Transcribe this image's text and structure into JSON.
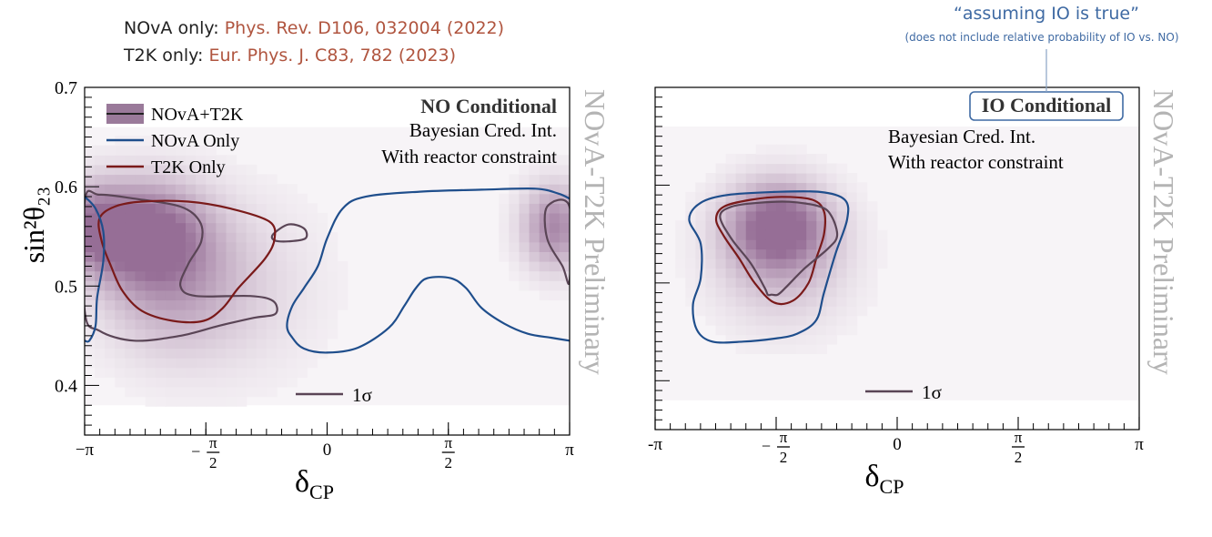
{
  "references": [
    {
      "label": "NOvA only: ",
      "citation": "Phys. Rev. D106, 032004 (2022)"
    },
    {
      "label": "T2K only: ",
      "citation": "Eur. Phys. J. C83, 782 (2023)"
    }
  ],
  "note": {
    "main": "“assuming IO is true”",
    "sub": "(does not include relative probability of IO vs. NO)"
  },
  "colors": {
    "combined": "#9a7a9a",
    "combined_line": "#5a4556",
    "nova": "#1f4e8c",
    "t2k": "#7a1a1a",
    "note": "#3f6aa3",
    "watermark": "#b4b4b4"
  },
  "chart_data": [
    {
      "type": "heatmap",
      "title": "NO Conditional",
      "subtitle_lines": [
        "Bayesian Cred. Int.",
        "With reactor constraint"
      ],
      "xlabel": "δ",
      "xlabel_sub": "CP",
      "ylabel": "sin²θ₂₃",
      "xlim": [
        -3.1416,
        3.1416
      ],
      "ylim": [
        0.35,
        0.7
      ],
      "x_ticks": [
        {
          "value": -3.1416,
          "label": "−π"
        },
        {
          "value": -1.5708,
          "label": "−π/2"
        },
        {
          "value": 0,
          "label": "0"
        },
        {
          "value": 1.5708,
          "label": "π/2"
        },
        {
          "value": 3.1416,
          "label": "π"
        }
      ],
      "y_ticks": [
        {
          "value": 0.4,
          "label": "0.4"
        },
        {
          "value": 0.5,
          "label": "0.5"
        },
        {
          "value": 0.6,
          "label": "0.6"
        },
        {
          "value": 0.7,
          "label": "0.7"
        }
      ],
      "legend": [
        {
          "name": "NOvA+T2K",
          "key": "combined"
        },
        {
          "name": "NOvA Only",
          "key": "nova"
        },
        {
          "name": "T2K Only",
          "key": "t2k"
        }
      ],
      "level_label": "1σ",
      "watermark": "NOvA-T2K Preliminary",
      "density_blobs": [
        {
          "x": -2.4,
          "y": 0.555,
          "sx": 0.55,
          "sy": 0.035,
          "w": 1.0
        },
        {
          "x": -2.1,
          "y": 0.505,
          "sx": 0.6,
          "sy": 0.05,
          "w": 0.45
        },
        {
          "x": -1.3,
          "y": 0.5,
          "sx": 0.8,
          "sy": 0.06,
          "w": 0.25
        },
        {
          "x": 2.95,
          "y": 0.56,
          "sx": 0.3,
          "sy": 0.03,
          "w": 0.8
        },
        {
          "x": -3.05,
          "y": 0.56,
          "sx": 0.3,
          "sy": 0.03,
          "w": 0.6
        }
      ],
      "contours": [
        {
          "key": "combined",
          "closed": true,
          "points": [
            [
              -3.14,
              0.585
            ],
            [
              -2.95,
              0.592
            ],
            [
              -2.5,
              0.588
            ],
            [
              -1.9,
              0.58
            ],
            [
              -1.65,
              0.565
            ],
            [
              -1.63,
              0.545
            ],
            [
              -1.8,
              0.522
            ],
            [
              -1.9,
              0.5
            ],
            [
              -1.7,
              0.49
            ],
            [
              -1.0,
              0.49
            ],
            [
              -0.7,
              0.485
            ],
            [
              -0.67,
              0.472
            ],
            [
              -0.95,
              0.468
            ],
            [
              -1.4,
              0.46
            ],
            [
              -1.9,
              0.45
            ],
            [
              -2.5,
              0.445
            ],
            [
              -2.95,
              0.455
            ],
            [
              -3.14,
              0.475
            ]
          ]
        },
        {
          "key": "combined",
          "closed": true,
          "points": [
            [
              -0.7,
              0.552
            ],
            [
              -0.5,
              0.562
            ],
            [
              -0.3,
              0.558
            ],
            [
              -0.28,
              0.548
            ],
            [
              -0.5,
              0.545
            ],
            [
              -0.68,
              0.546
            ]
          ]
        },
        {
          "key": "combined",
          "closed": true,
          "points": [
            [
              2.85,
              0.58
            ],
            [
              3.14,
              0.58
            ],
            [
              3.14,
              0.505
            ],
            [
              3.05,
              0.52
            ],
            [
              2.85,
              0.548
            ]
          ]
        },
        {
          "key": "t2k",
          "closed": true,
          "points": [
            [
              -2.95,
              0.568
            ],
            [
              -2.75,
              0.58
            ],
            [
              -2.4,
              0.585
            ],
            [
              -1.8,
              0.585
            ],
            [
              -1.25,
              0.578
            ],
            [
              -0.75,
              0.565
            ],
            [
              -0.68,
              0.548
            ],
            [
              -0.8,
              0.528
            ],
            [
              -1.15,
              0.498
            ],
            [
              -1.35,
              0.478
            ],
            [
              -1.6,
              0.465
            ],
            [
              -2.0,
              0.465
            ],
            [
              -2.4,
              0.475
            ],
            [
              -2.65,
              0.495
            ],
            [
              -2.8,
              0.52
            ],
            [
              -2.92,
              0.545
            ]
          ]
        },
        {
          "key": "nova",
          "closed": false,
          "points": [
            [
              -3.14,
              0.59
            ],
            [
              -3.0,
              0.578
            ],
            [
              -2.9,
              0.555
            ],
            [
              -2.9,
              0.525
            ],
            [
              -2.98,
              0.488
            ],
            [
              -3.0,
              0.46
            ],
            [
              -3.08,
              0.445
            ],
            [
              -3.14,
              0.445
            ]
          ]
        },
        {
          "key": "nova",
          "closed": false,
          "points": [
            [
              3.14,
              0.445
            ],
            [
              2.9,
              0.448
            ],
            [
              2.6,
              0.452
            ],
            [
              2.3,
              0.462
            ],
            [
              2.0,
              0.478
            ],
            [
              1.8,
              0.498
            ],
            [
              1.6,
              0.508
            ],
            [
              1.3,
              0.508
            ],
            [
              1.15,
              0.498
            ],
            [
              1.0,
              0.48
            ],
            [
              0.8,
              0.458
            ],
            [
              0.4,
              0.438
            ],
            [
              0.0,
              0.433
            ],
            [
              -0.3,
              0.437
            ],
            [
              -0.45,
              0.448
            ],
            [
              -0.52,
              0.46
            ],
            [
              -0.45,
              0.48
            ],
            [
              -0.3,
              0.498
            ],
            [
              -0.12,
              0.52
            ],
            [
              0.0,
              0.548
            ],
            [
              0.2,
              0.578
            ],
            [
              0.5,
              0.59
            ],
            [
              1.2,
              0.595
            ],
            [
              2.0,
              0.597
            ],
            [
              2.7,
              0.598
            ],
            [
              3.0,
              0.593
            ],
            [
              3.14,
              0.588
            ]
          ]
        }
      ]
    },
    {
      "type": "heatmap",
      "title": "IO Conditional",
      "subtitle_lines": [
        "Bayesian Cred. Int.",
        "With reactor constraint"
      ],
      "xlabel": "δ",
      "xlabel_sub": "CP",
      "ylabel": "",
      "xlim": [
        -3.1416,
        3.1416
      ],
      "ylim": [
        0.35,
        0.7
      ],
      "x_ticks": [
        {
          "value": -3.1416,
          "label": "-π"
        },
        {
          "value": -1.5708,
          "label": "−π/2"
        },
        {
          "value": 0,
          "label": "0"
        },
        {
          "value": 1.5708,
          "label": "π/2"
        },
        {
          "value": 3.1416,
          "label": "π"
        }
      ],
      "y_ticks": [
        {
          "value": 0.4,
          "label": ""
        },
        {
          "value": 0.5,
          "label": ""
        },
        {
          "value": 0.6,
          "label": ""
        },
        {
          "value": 0.7,
          "label": ""
        }
      ],
      "level_label": "1σ",
      "watermark": "NOvA-T2K Preliminary",
      "density_blobs": [
        {
          "x": -1.55,
          "y": 0.56,
          "sx": 0.45,
          "sy": 0.03,
          "w": 1.0
        },
        {
          "x": -1.5,
          "y": 0.52,
          "sx": 0.6,
          "sy": 0.045,
          "w": 0.4
        }
      ],
      "contours": [
        {
          "key": "nova",
          "closed": true,
          "points": [
            [
              -2.7,
              0.565
            ],
            [
              -2.55,
              0.582
            ],
            [
              -2.2,
              0.59
            ],
            [
              -1.6,
              0.593
            ],
            [
              -1.0,
              0.593
            ],
            [
              -0.68,
              0.585
            ],
            [
              -0.65,
              0.565
            ],
            [
              -0.8,
              0.53
            ],
            [
              -0.95,
              0.49
            ],
            [
              -1.05,
              0.462
            ],
            [
              -1.3,
              0.448
            ],
            [
              -1.6,
              0.443
            ],
            [
              -2.0,
              0.44
            ],
            [
              -2.4,
              0.44
            ],
            [
              -2.6,
              0.452
            ],
            [
              -2.65,
              0.478
            ],
            [
              -2.55,
              0.505
            ],
            [
              -2.55,
              0.54
            ]
          ]
        },
        {
          "key": "t2k",
          "closed": true,
          "points": [
            [
              -2.35,
              0.565
            ],
            [
              -2.25,
              0.578
            ],
            [
              -1.9,
              0.585
            ],
            [
              -1.5,
              0.588
            ],
            [
              -1.1,
              0.585
            ],
            [
              -0.95,
              0.573
            ],
            [
              -0.95,
              0.55
            ],
            [
              -1.05,
              0.525
            ],
            [
              -1.15,
              0.5
            ],
            [
              -1.35,
              0.482
            ],
            [
              -1.6,
              0.48
            ],
            [
              -1.85,
              0.5
            ],
            [
              -2.05,
              0.525
            ],
            [
              -2.25,
              0.548
            ]
          ]
        },
        {
          "key": "combined",
          "closed": true,
          "points": [
            [
              -2.3,
              0.568
            ],
            [
              -2.15,
              0.578
            ],
            [
              -1.8,
              0.582
            ],
            [
              -1.4,
              0.583
            ],
            [
              -1.0,
              0.578
            ],
            [
              -0.85,
              0.568
            ],
            [
              -0.78,
              0.548
            ],
            [
              -0.9,
              0.535
            ],
            [
              -1.2,
              0.515
            ],
            [
              -1.45,
              0.495
            ],
            [
              -1.55,
              0.488
            ],
            [
              -1.63,
              0.488
            ],
            [
              -1.68,
              0.488
            ],
            [
              -1.72,
              0.495
            ],
            [
              -1.9,
              0.52
            ],
            [
              -2.15,
              0.545
            ]
          ]
        }
      ]
    }
  ]
}
